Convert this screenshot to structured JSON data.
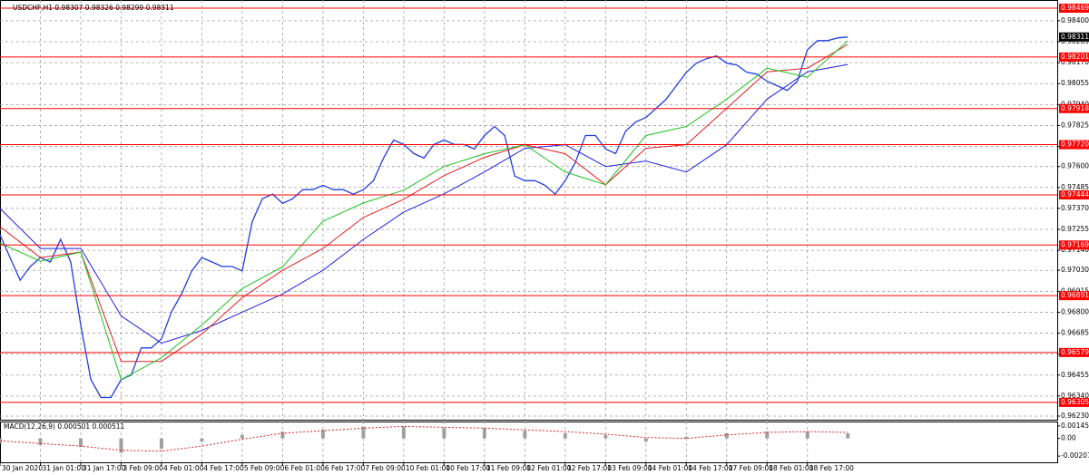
{
  "chart_data": [
    {
      "type": "line",
      "title": "USDCHF,H1 0.98307 0.98326 0.98299 0.98311",
      "xlim": [
        0,
        419
      ],
      "xticks": [
        {
          "value": 0,
          "label": "30 Jan 2020"
        },
        {
          "value": 16,
          "label": "31 Jan 01:00"
        },
        {
          "value": 32,
          "label": "31 Jan 17:00"
        },
        {
          "value": 48,
          "label": "3 Feb 09:00"
        },
        {
          "value": 64,
          "label": "4 Feb 01:00"
        },
        {
          "value": 80,
          "label": "4 Feb 17:00"
        },
        {
          "value": 96,
          "label": "5 Feb 09:00"
        },
        {
          "value": 112,
          "label": "6 Feb 01:00"
        },
        {
          "value": 128,
          "label": "6 Feb 17:00"
        },
        {
          "value": 144,
          "label": "7 Feb 09:00"
        },
        {
          "value": 160,
          "label": "10 Feb 01:00"
        },
        {
          "value": 176,
          "label": "10 Feb 17:00"
        },
        {
          "value": 192,
          "label": "11 Feb 09:00"
        },
        {
          "value": 208,
          "label": "12 Feb 01:00"
        },
        {
          "value": 224,
          "label": "12 Feb 17:00"
        },
        {
          "value": 240,
          "label": "13 Feb 09:00"
        },
        {
          "value": 256,
          "label": "14 Feb 01:00"
        },
        {
          "value": 272,
          "label": "14 Feb 17:00"
        },
        {
          "value": 288,
          "label": "17 Feb 09:00"
        },
        {
          "value": 304,
          "label": "18 Feb 01:00"
        },
        {
          "value": 320,
          "label": "18 Feb 17:00"
        }
      ],
      "ylim": [
        0.9621,
        0.98514
      ],
      "yticks": [
        {
          "value": 0.984,
          "label": "0.98400"
        },
        0.98285,
        {
          "value": 0.9817,
          "label": "0.98170"
        },
        0.98055,
        {
          "value": 0.9794,
          "label": "0.97940"
        },
        0.97825,
        {
          "value": 0.9771,
          "label": "0.97710"
        },
        {
          "value": 0.976,
          "label": "0.97600"
        },
        0.97485,
        {
          "value": 0.9737,
          "label": "0.97370"
        },
        0.97255,
        {
          "value": 0.9714,
          "label": "0.97140"
        },
        {
          "value": 0.9703,
          "label": "0.97030"
        },
        0.96915,
        {
          "value": 0.968,
          "label": "0.96800"
        },
        0.96685,
        {
          "value": 0.9657,
          "label": "0.96570"
        },
        0.96455,
        {
          "value": 0.9634,
          "label": "0.96340"
        },
        {
          "value": 0.9623,
          "label": "0.96230"
        }
      ],
      "grid": true,
      "series": [
        {
          "color": "#1f3fe0",
          "x": [
            0,
            4,
            8,
            12,
            16,
            20,
            24,
            28,
            32,
            36,
            40,
            44,
            48,
            52,
            56,
            60,
            64,
            68,
            72,
            76,
            80,
            84,
            88,
            92,
            96,
            100,
            104,
            108,
            112,
            116,
            120,
            124,
            128,
            132,
            136,
            140,
            144,
            148,
            152,
            156,
            160,
            164,
            168,
            172,
            176,
            180,
            184,
            188,
            192,
            196,
            200,
            204,
            208,
            212,
            216,
            220,
            224,
            228,
            232,
            236,
            240,
            244,
            248,
            252,
            256,
            260,
            264,
            268,
            272,
            276,
            280,
            284,
            288,
            292,
            296,
            300,
            304,
            308,
            312,
            316,
            320,
            324,
            328,
            332,
            336
          ],
          "values": [
            0.97225,
            0.971,
            0.96976,
            0.97051,
            0.971,
            0.97076,
            0.972,
            0.97076,
            0.96728,
            0.96431,
            0.96332,
            0.96332,
            0.96431,
            0.96456,
            0.96604,
            0.96604,
            0.96654,
            0.96803,
            0.96902,
            0.97026,
            0.971,
            0.97076,
            0.97051,
            0.97051,
            0.97026,
            0.97299,
            0.97423,
            0.97448,
            0.97398,
            0.97423,
            0.97473,
            0.97473,
            0.97497,
            0.97473,
            0.97473,
            0.97448,
            0.97473,
            0.97522,
            0.97646,
            0.97745,
            0.97721,
            0.97671,
            0.97646,
            0.97721,
            0.97745,
            0.97721,
            0.97721,
            0.97696,
            0.9777,
            0.9782,
            0.9777,
            0.97547,
            0.97522,
            0.97522,
            0.97497,
            0.97448,
            0.97522,
            0.97621,
            0.9777,
            0.9777,
            0.97696,
            0.97671,
            0.97795,
            0.97845,
            0.97869,
            0.97919,
            0.97969,
            0.98043,
            0.98117,
            0.98167,
            0.98192,
            0.98207,
            0.98167,
            0.98157,
            0.98117,
            0.98107,
            0.98068,
            0.98043,
            0.98018,
            0.98068,
            0.98241,
            0.98291,
            0.98291,
            0.98306,
            0.98311
          ]
        },
        {
          "color": "#2020e0",
          "x": [
            0,
            16,
            32,
            48,
            64,
            80,
            96,
            112,
            128,
            144,
            160,
            176,
            192,
            208,
            224,
            240,
            256,
            272,
            288,
            304,
            320,
            336
          ],
          "values": [
            0.9737,
            0.9715,
            0.9715,
            0.9678,
            0.9663,
            0.967,
            0.968,
            0.969,
            0.9703,
            0.972,
            0.9735,
            0.9745,
            0.9757,
            0.977,
            0.9772,
            0.976,
            0.9763,
            0.9757,
            0.9772,
            0.9797,
            0.9812,
            0.9816
          ]
        },
        {
          "color": "#e02020",
          "x": [
            0,
            16,
            32,
            48,
            64,
            80,
            96,
            112,
            128,
            144,
            160,
            176,
            192,
            208,
            224,
            240,
            256,
            272,
            288,
            304,
            320,
            336
          ],
          "values": [
            0.9727,
            0.971,
            0.9713,
            0.9653,
            0.9653,
            0.9668,
            0.9688,
            0.9703,
            0.9715,
            0.9732,
            0.9742,
            0.9755,
            0.9765,
            0.9772,
            0.9767,
            0.975,
            0.977,
            0.9772,
            0.9792,
            0.9812,
            0.9814,
            0.9827
          ]
        },
        {
          "color": "#20c020",
          "x": [
            0,
            16,
            32,
            48,
            64,
            80,
            96,
            112,
            128,
            144,
            160,
            176,
            192,
            208,
            224,
            240,
            256,
            272,
            288,
            304,
            320,
            336
          ],
          "values": [
            0.9718,
            0.9708,
            0.9713,
            0.9643,
            0.9655,
            0.9673,
            0.9693,
            0.9705,
            0.973,
            0.974,
            0.9747,
            0.976,
            0.9767,
            0.9772,
            0.9757,
            0.975,
            0.9777,
            0.9782,
            0.9797,
            0.9814,
            0.9809,
            0.9829
          ]
        }
      ],
      "levels": {
        "color": "#ff0000",
        "values": [
          0.98469,
          0.98201,
          0.97918,
          0.9772,
          0.97444,
          0.97169,
          0.96891,
          0.96579,
          0.96305
        ],
        "value_labels": [
          "0.98469",
          "0.98201",
          "0.97918",
          "0.97720",
          "0.97444",
          "0.97169",
          "0.96891",
          "0.96579",
          "0.96305"
        ]
      }
    },
    {
      "type": "macd",
      "title": "MACD(12,26,9) 0.000501 0.000511",
      "xlim": [
        0,
        419
      ],
      "ylim": [
        -0.00281,
        0.00198
      ],
      "yticks": [
        0.001458,
        {
          "value": 0,
          "label": "0.00"
        },
        -0.002078
      ],
      "x": [
        0,
        16,
        32,
        48,
        64,
        80,
        96,
        112,
        128,
        144,
        160,
        176,
        192,
        208,
        224,
        240,
        256,
        272,
        288,
        304,
        320,
        336
      ],
      "values": [
        -0.0006,
        -0.0008,
        -0.001,
        -0.0017,
        -0.0012,
        -0.0004,
        0.0004,
        0.0008,
        0.001,
        0.0014,
        0.0014,
        0.0012,
        0.0012,
        0.0009,
        0.0006,
        0.0004,
        -0.0004,
        0.0002,
        0.0006,
        0.0008,
        0.0008,
        0.0006
      ],
      "color": "#a0a0a0",
      "signal": {
        "color": "#e02020",
        "values": [
          -0.0003,
          -0.0006,
          -0.0009,
          -0.0014,
          -0.0015,
          -0.0009,
          -0.0001,
          0.0006,
          0.0009,
          0.0012,
          0.0014,
          0.0013,
          0.0012,
          0.001,
          0.0008,
          0.0005,
          0.0001,
          0,
          0.0004,
          0.0007,
          0.0008,
          0.0007
        ]
      }
    }
  ]
}
